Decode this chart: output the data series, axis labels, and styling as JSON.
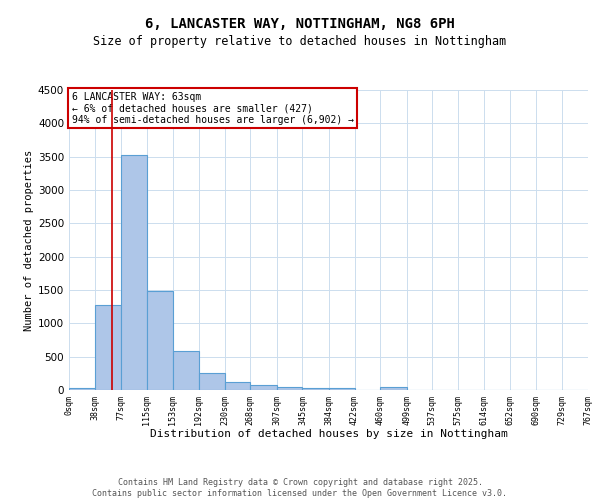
{
  "title_line1": "6, LANCASTER WAY, NOTTINGHAM, NG8 6PH",
  "title_line2": "Size of property relative to detached houses in Nottingham",
  "xlabel": "Distribution of detached houses by size in Nottingham",
  "ylabel": "Number of detached properties",
  "bin_edges": [
    0,
    38,
    77,
    115,
    153,
    192,
    230,
    268,
    307,
    345,
    384,
    422,
    460,
    499,
    537,
    575,
    614,
    652,
    690,
    729,
    767
  ],
  "bar_heights": [
    30,
    1280,
    3530,
    1490,
    590,
    250,
    120,
    80,
    40,
    30,
    25,
    5,
    40,
    2,
    0,
    0,
    0,
    0,
    0,
    0
  ],
  "bar_color": "#aec6e8",
  "bar_edge_color": "#5a9fd4",
  "bar_edge_width": 0.8,
  "property_line_x": 63,
  "property_line_color": "#cc0000",
  "annotation_title": "6 LANCASTER WAY: 63sqm",
  "annotation_line2": "← 6% of detached houses are smaller (427)",
  "annotation_line3": "94% of semi-detached houses are larger (6,902) →",
  "annotation_box_color": "#cc0000",
  "ylim": [
    0,
    4500
  ],
  "yticks": [
    0,
    500,
    1000,
    1500,
    2000,
    2500,
    3000,
    3500,
    4000,
    4500
  ],
  "background_color": "#ffffff",
  "grid_color": "#ccddee",
  "footer_line1": "Contains HM Land Registry data © Crown copyright and database right 2025.",
  "footer_line2": "Contains public sector information licensed under the Open Government Licence v3.0.",
  "tick_labels": [
    "0sqm",
    "38sqm",
    "77sqm",
    "115sqm",
    "153sqm",
    "192sqm",
    "230sqm",
    "268sqm",
    "307sqm",
    "345sqm",
    "384sqm",
    "422sqm",
    "460sqm",
    "499sqm",
    "537sqm",
    "575sqm",
    "614sqm",
    "652sqm",
    "690sqm",
    "729sqm",
    "767sqm"
  ]
}
